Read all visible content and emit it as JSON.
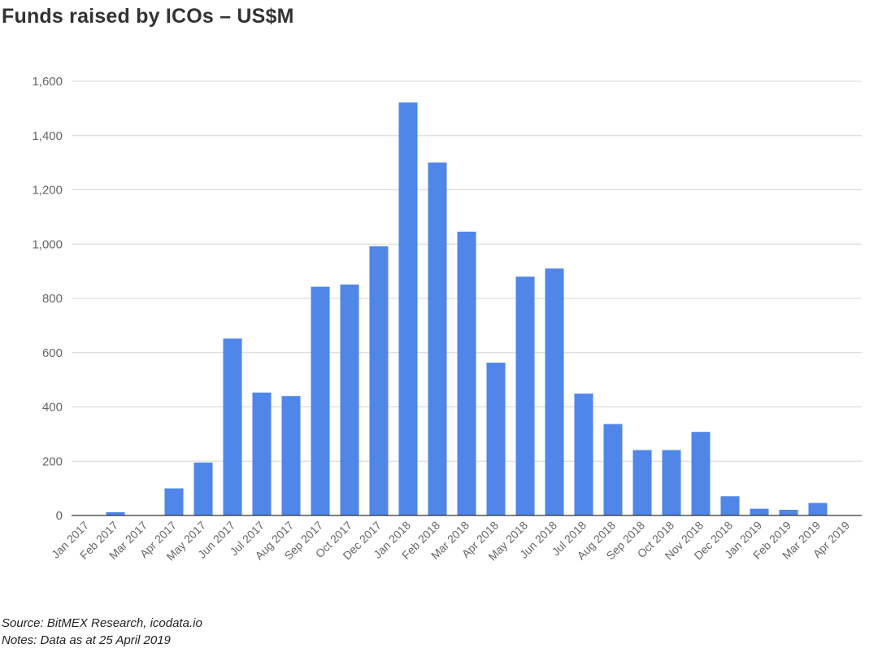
{
  "title": "Funds raised by ICOs – US$M",
  "footer": {
    "source": "Source: BitMEX Research, icodata.io",
    "notes": "Notes: Data as at 25 April 2019"
  },
  "colors": {
    "bar": "#4f86e8",
    "grid": "#d5d5d5",
    "axis": "#333333",
    "tick_text": "#666666"
  },
  "chart_data": {
    "type": "bar",
    "title": "Funds raised by ICOs – US$M",
    "xlabel": "",
    "ylabel": "",
    "ylim": [
      0,
      1600
    ],
    "yticks": [
      0,
      200,
      400,
      600,
      800,
      1000,
      1200,
      1400,
      1600
    ],
    "ytick_labels": [
      "0",
      "200",
      "400",
      "600",
      "800",
      "1,000",
      "1,200",
      "1,400",
      "1,600"
    ],
    "grid": true,
    "categories": [
      "Jan 2017",
      "Feb 2017",
      "Mar 2017",
      "Apr 2017",
      "May 2017",
      "Jun 2017",
      "Jul 2017",
      "Aug 2017",
      "Sep 2017",
      "Oct 2017",
      "Dec 2017",
      "Jan 2018",
      "Feb 2018",
      "Mar 2018",
      "Apr 2018",
      "May 2018",
      "Jun 2018",
      "Jul 2018",
      "Aug 2018",
      "Sep 2018",
      "Oct 2018",
      "Nov 2018",
      "Dec 2018",
      "Jan 2019",
      "Feb 2019",
      "Mar 2019",
      "Apr 2019"
    ],
    "values": [
      0,
      12,
      0,
      100,
      195,
      652,
      453,
      440,
      843,
      851,
      992,
      1522,
      1301,
      1046,
      563,
      880,
      910,
      449,
      337,
      241,
      241,
      308,
      71,
      25,
      21,
      46,
      0
    ]
  }
}
